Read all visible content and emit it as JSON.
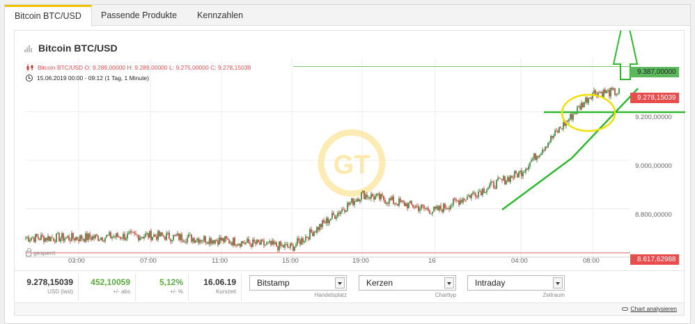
{
  "tabs": [
    {
      "label": "Bitcoin BTC/USD",
      "active": true
    },
    {
      "label": "Passende Produkte",
      "active": false
    },
    {
      "label": "Kennzahlen",
      "active": false
    }
  ],
  "chart_title": "Bitcoin BTC/USD",
  "ohlc_line": "Bitcoin BTC/USD  O: 9.289,00000  H: 9.289,00000  L: 9.275,00000  C: 9.278,15039",
  "time_line": "15.06.2019 00:00 - 09:12   (1 Tag, 1 Minute)",
  "locked_label": "gesperrt",
  "price_labels": {
    "high": "9.387,00000",
    "current": "9.278,15039",
    "low": "8.617,62988",
    "tick_9200": "9.200,00000",
    "tick_9000": "9.000,00000",
    "tick_8800": "8.800,00000"
  },
  "x_ticks": [
    "03:00",
    "07:00",
    "11:00",
    "15:00",
    "19:00",
    "16",
    "04:00",
    "08:00"
  ],
  "colors": {
    "up_candle": "#2e7d2e",
    "down_candle": "#c0392b",
    "annotation_green": "#2eb82e",
    "annotation_yellow": "#f0e000",
    "accent_tab": "#f2c200"
  },
  "chart_data": {
    "type": "line",
    "title": "Bitcoin BTC/USD",
    "xlabel": "",
    "ylabel": "",
    "x": [
      "03:00",
      "07:00",
      "11:00",
      "15:00",
      "19:00",
      "16",
      "04:00",
      "08:00"
    ],
    "series": [
      {
        "name": "Bitcoin BTC/USD",
        "values": [
          8680,
          8690,
          8670,
          8640,
          8860,
          8790,
          8950,
          9280
        ]
      }
    ],
    "ylim": [
      8600,
      9420
    ],
    "high": 9387.0,
    "last": 9278.15039,
    "low": 8617.62988
  },
  "stats": [
    {
      "value": "9.278,15039",
      "label": "USD (last)",
      "green": false
    },
    {
      "value": "452,10059",
      "label": "+/- abs",
      "green": true
    },
    {
      "value": "5,12%",
      "label": "+/- %",
      "green": true
    },
    {
      "value": "16.06.19",
      "label": "Kurszeit",
      "green": false
    }
  ],
  "selects": [
    {
      "value": "Bitstamp",
      "label": "Handelsplatz"
    },
    {
      "value": "Kerzen",
      "label": "Charttyp"
    },
    {
      "value": "Intraday",
      "label": "Zeitraum"
    }
  ],
  "analyse_link": "Chart analysieren"
}
